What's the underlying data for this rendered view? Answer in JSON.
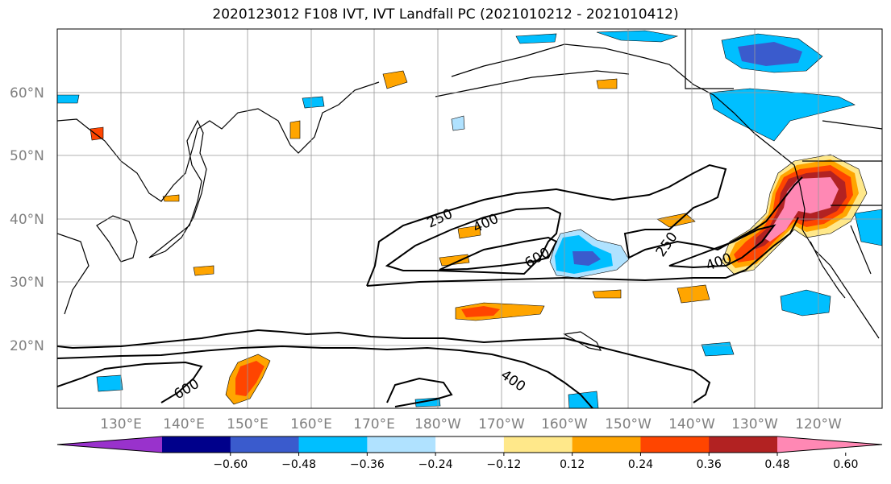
{
  "title": "2020123012 F108 IVT, IVT Landfall PC (2021010212 - 2021010412)",
  "map": {
    "lon_ticks": [
      "130°E",
      "140°E",
      "150°E",
      "160°E",
      "170°E",
      "180°W",
      "170°W",
      "160°W",
      "150°W",
      "140°W",
      "130°W",
      "120°W"
    ],
    "lat_ticks": [
      "60°N",
      "50°N",
      "40°N",
      "30°N",
      "20°N"
    ],
    "grid": true
  },
  "contour_labels": [
    "250",
    "400",
    "600",
    "250",
    "400",
    "600",
    "400"
  ],
  "colorbar": {
    "colors": [
      "#9932cc",
      "#00008b",
      "#3a5bcd",
      "#00bfff",
      "#b0e2ff",
      "#ffffff",
      "#ffe88a",
      "#ffa500",
      "#ff4500",
      "#b22222",
      "#ff88b4"
    ],
    "tick_labels": [
      "−0.60",
      "−0.48",
      "−0.36",
      "−0.24",
      "−0.12",
      "0.12",
      "0.24",
      "0.36",
      "0.48",
      "0.60"
    ],
    "extend": "both"
  }
}
